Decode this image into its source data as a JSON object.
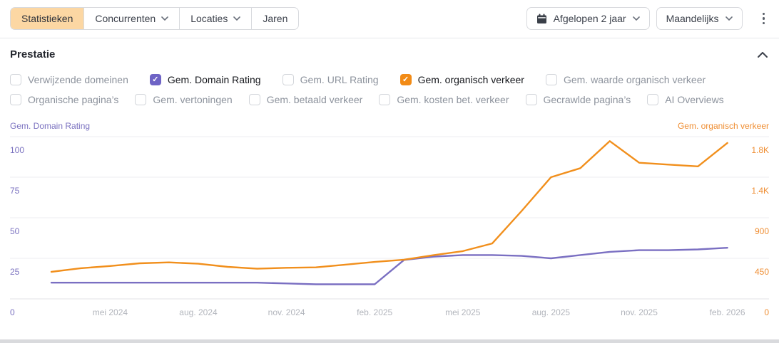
{
  "toolbar": {
    "tabs": {
      "statistieken": "Statistieken",
      "concurrenten": "Concurrenten",
      "locaties": "Locaties",
      "jaren": "Jaren"
    },
    "date_range": "Afgelopen 2 jaar",
    "granularity": "Maandelijks",
    "icons": {
      "date_range_icon": "calendar-icon",
      "dropdown_icon": "chevron-down-icon",
      "overflow_icon": "kebab-menu-icon"
    }
  },
  "section": {
    "title": "Prestatie",
    "collapse_icon": "chevron-up-icon"
  },
  "metrics": {
    "row1": [
      {
        "label": "Verwijzende domeinen",
        "checked": false
      },
      {
        "label": "Gem. Domain Rating",
        "checked": true,
        "check_color": "#6e63c5"
      },
      {
        "label": "Gem. URL Rating",
        "checked": false
      },
      {
        "label": "Gem. organisch verkeer",
        "checked": true,
        "check_color": "#f28b16"
      },
      {
        "label": "Gem. waarde organisch verkeer",
        "checked": false
      }
    ],
    "row2": [
      {
        "label": "Organische pagina’s",
        "checked": false
      },
      {
        "label": "Gem. vertoningen",
        "checked": false
      },
      {
        "label": "Gem. betaald verkeer",
        "checked": false
      },
      {
        "label": "Gem. kosten bet. verkeer",
        "checked": false
      },
      {
        "label": "Gecrawlde pagina’s",
        "checked": false
      },
      {
        "label": "AI Overviews",
        "checked": false
      }
    ]
  },
  "chart_data": {
    "type": "line",
    "x": [
      "mrt 2024",
      "apr 2024",
      "mei 2024",
      "jun 2024",
      "jul 2024",
      "aug 2024",
      "sep 2024",
      "okt 2024",
      "nov 2024",
      "dec 2024",
      "jan 2025",
      "feb 2025",
      "mrt 2025",
      "apr 2025",
      "mei 2025",
      "jun 2025",
      "jul 2025",
      "aug 2025",
      "sep 2025",
      "okt 2025",
      "nov 2025",
      "dec 2025",
      "jan 2026",
      "feb 2026"
    ],
    "x_tick_labels": [
      "mei 2024",
      "aug. 2024",
      "nov. 2024",
      "feb. 2025",
      "mei 2025",
      "aug. 2025",
      "nov. 2025",
      "feb. 2026"
    ],
    "x_tick_indices": [
      2,
      5,
      8,
      11,
      14,
      17,
      20,
      23
    ],
    "left_axis": {
      "title": "Gem. Domain Rating",
      "ticks": [
        "100",
        "75",
        "50",
        "25",
        "0"
      ],
      "min": 0,
      "max": 100,
      "color": "#7b72c0"
    },
    "right_axis": {
      "title": "Gem. organisch verkeer",
      "ticks": [
        "1.8K",
        "1.4K",
        "900",
        "450",
        "0"
      ],
      "min": 0,
      "max": 1800,
      "color": "#ef8e33"
    },
    "grid": true,
    "legend_position": "none",
    "series": [
      {
        "name": "Gem. Domain Rating",
        "axis": "left",
        "color": "#7a6fc2",
        "values": [
          10,
          10,
          10,
          10,
          10,
          10,
          10,
          10,
          9.5,
          9,
          9,
          9,
          24,
          26,
          27,
          27,
          26.5,
          25,
          27,
          29,
          30,
          30,
          30.5,
          31.5
        ]
      },
      {
        "name": "Gem. organisch verkeer",
        "axis": "right",
        "color": "#f18f1c",
        "values": [
          300,
          340,
          365,
          395,
          405,
          390,
          355,
          335,
          345,
          350,
          380,
          410,
          435,
          485,
          530,
          615,
          975,
          1350,
          1450,
          1750,
          1510,
          1490,
          1470,
          1730
        ]
      }
    ]
  },
  "colors": {
    "active_tab_bg": "#fcd7a3",
    "purple_accent": "#6e63c5",
    "orange_accent": "#f28b16",
    "gridline": "#ededf0"
  }
}
